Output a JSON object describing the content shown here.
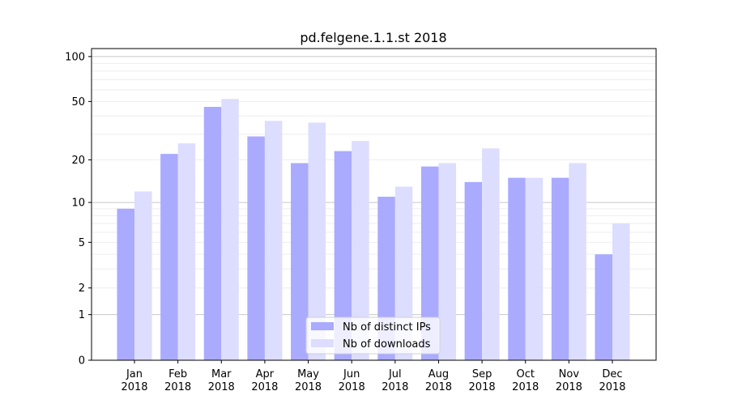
{
  "chart_data": {
    "type": "bar",
    "title": "pd.felgene.1.1.st 2018",
    "xlabel": "",
    "ylabel": "",
    "yscale": "log(1+y)",
    "ylim": [
      0,
      113
    ],
    "yticks": [
      0,
      1,
      2,
      5,
      10,
      20,
      50,
      100
    ],
    "grid": true,
    "legend_position": "lower center",
    "categories": [
      "Jan\n2018",
      "Feb\n2018",
      "Mar\n2018",
      "Apr\n2018",
      "May\n2018",
      "Jun\n2018",
      "Jul\n2018",
      "Aug\n2018",
      "Sep\n2018",
      "Oct\n2018",
      "Nov\n2018",
      "Dec\n2018"
    ],
    "series": [
      {
        "name": "Nb of distinct IPs",
        "color": "#aaaaff",
        "values": [
          9,
          22,
          46,
          29,
          19,
          23,
          11,
          18,
          14,
          15,
          15,
          4
        ]
      },
      {
        "name": "Nb of downloads",
        "color": "#ddddff",
        "values": [
          12,
          26,
          52,
          37,
          36,
          27,
          13,
          19,
          24,
          15,
          19,
          7
        ]
      }
    ]
  }
}
